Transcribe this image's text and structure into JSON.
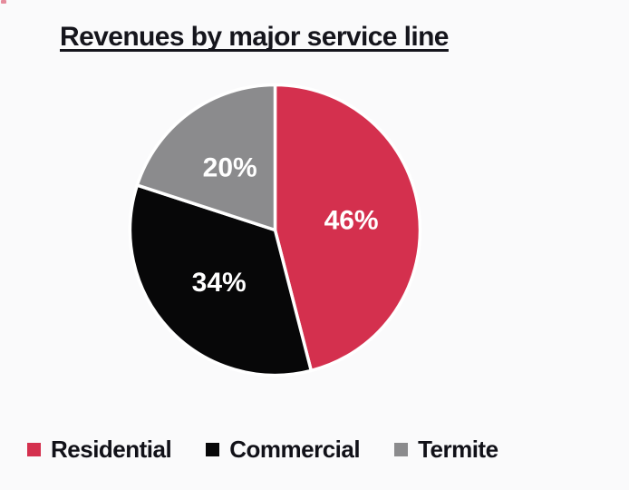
{
  "page": {
    "background_color": "#fafafb"
  },
  "chart_data": {
    "type": "pie",
    "title": "Revenues by major service line",
    "categories": [
      "Residential",
      "Commercial",
      "Termite"
    ],
    "values": [
      46,
      34,
      20
    ],
    "data_labels": [
      "46%",
      "34%",
      "20%"
    ],
    "colors": [
      "#d4304e",
      "#070708",
      "#8b8b8d"
    ],
    "data_label_color": "#ffffff",
    "separator_color": "#ffffff",
    "start_angle": "top",
    "direction": "clockwise",
    "legend_position": "bottom-left",
    "title_underlined": true,
    "title_color": "#15151c"
  }
}
